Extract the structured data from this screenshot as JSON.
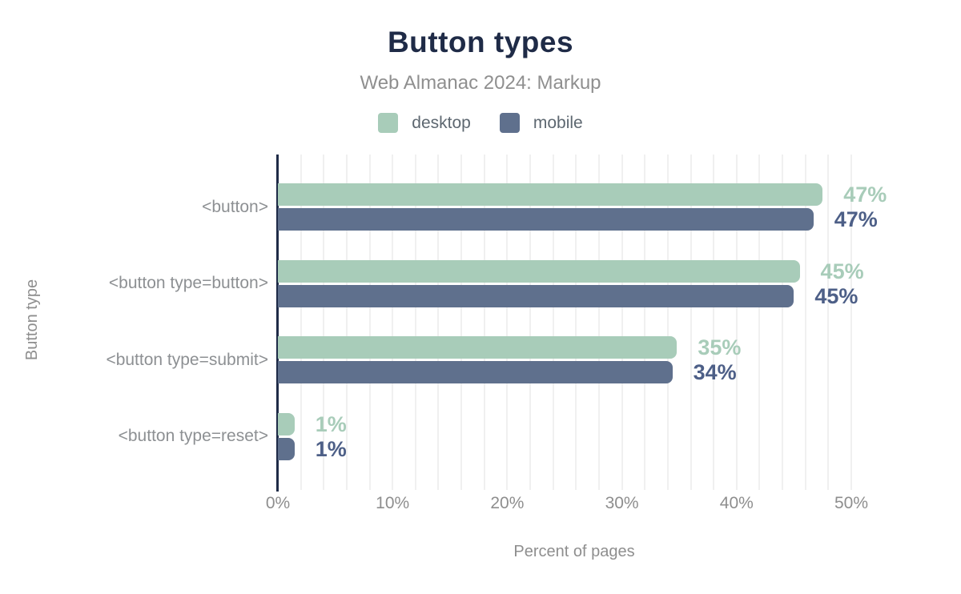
{
  "header": {
    "title": "Button types",
    "subtitle": "Web Almanac 2024: Markup"
  },
  "chart_data": {
    "type": "bar",
    "orientation": "horizontal",
    "title": "Button types",
    "subtitle": "Web Almanac 2024: Markup",
    "categories": [
      "<button>",
      "<button type=button>",
      "<button type=submit>",
      "<button type=reset>"
    ],
    "series": [
      {
        "name": "desktop",
        "color": "#a8ccb9",
        "label_color": "#a8ccb9",
        "values": [
          47,
          45,
          35,
          1
        ],
        "labels": [
          "47%",
          "45%",
          "35%",
          "1%"
        ],
        "bar_fill_pct": [
          47.5,
          45.5,
          34.8,
          1.45
        ]
      },
      {
        "name": "mobile",
        "color": "#5f708d",
        "label_color": "#4d5f87",
        "values": [
          47,
          45,
          34,
          1
        ],
        "labels": [
          "47%",
          "45%",
          "34%",
          "1%"
        ],
        "bar_fill_pct": [
          46.7,
          45.0,
          34.4,
          1.45
        ]
      }
    ],
    "xlabel": "Percent of pages",
    "ylabel": "Button type",
    "x_ticks": [
      {
        "value": 0,
        "label": "0%"
      },
      {
        "value": 10,
        "label": "10%"
      },
      {
        "value": 20,
        "label": "20%"
      },
      {
        "value": 30,
        "label": "30%"
      },
      {
        "value": 40,
        "label": "40%"
      },
      {
        "value": 50,
        "label": "50%"
      }
    ],
    "xlim": [
      0,
      52
    ],
    "grid": "vertical, every 2%",
    "legend_position": "top"
  },
  "colors": {
    "title": "#1f2b47",
    "subtitle": "#8f8f8f",
    "axis_line": "#1f2b47",
    "grid": "#f0f0f0",
    "tick_text": "#8e8e8e",
    "category_text": "#8d9093",
    "legend_text": "#5d6770",
    "background": "#ffffff"
  }
}
